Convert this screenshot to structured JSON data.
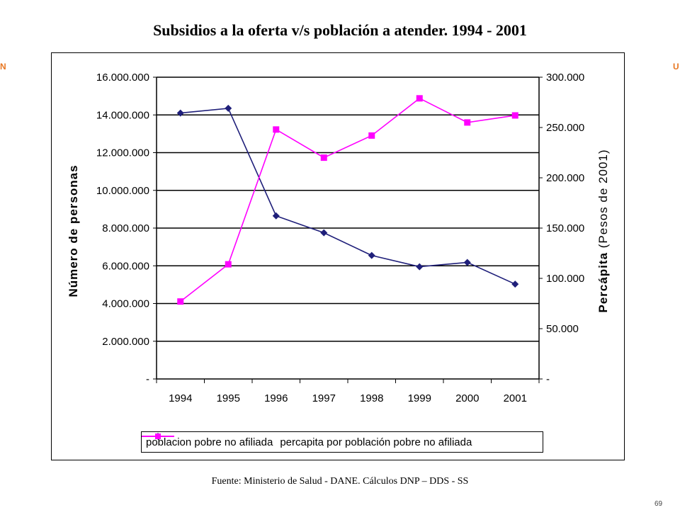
{
  "slide": {
    "title": "Subsidios a la oferta v/s población a atender. 1994 - 2001",
    "source": "Fuente: Ministerio de Salud - DANE. Cálculos DNP – DDS - SS",
    "page_number": "69",
    "side_mark_left": "N",
    "side_mark_right": "U"
  },
  "colors": {
    "series1": "#1f1f7a",
    "series2": "#ff00ff",
    "accent": "#e87722"
  },
  "chart_data": {
    "type": "line",
    "title": "Subsidios a la oferta v/s población a atender. 1994 - 2001",
    "categories": [
      "1994",
      "1995",
      "1996",
      "1997",
      "1998",
      "1999",
      "2000",
      "2001"
    ],
    "ylabel": "Número de personas",
    "y2label_main": "Percápita",
    "y2label_sub": "(Pesos de 2001)",
    "ylim": [
      0,
      16000000
    ],
    "y2lim": [
      0,
      300000
    ],
    "yticks": [
      "-",
      "2.000.000",
      "4.000.000",
      "6.000.000",
      "8.000.000",
      "10.000.000",
      "12.000.000",
      "14.000.000",
      "16.000.000"
    ],
    "y2ticks": [
      "-",
      "50.000",
      "100.000",
      "150.000",
      "200.000",
      "250.000",
      "300.000"
    ],
    "grid": true,
    "legend_position": "bottom",
    "series": [
      {
        "name": "poblacion pobre no afiliada",
        "axis": "left",
        "marker": "diamond",
        "values": [
          14100000,
          14350000,
          8650000,
          7750000,
          6550000,
          5950000,
          6180000,
          5030000
        ]
      },
      {
        "name": "percapita por población pobre no afiliada",
        "axis": "right",
        "marker": "square",
        "values": [
          77000,
          114000,
          248000,
          220000,
          242000,
          279000,
          255000,
          262000
        ]
      }
    ]
  }
}
